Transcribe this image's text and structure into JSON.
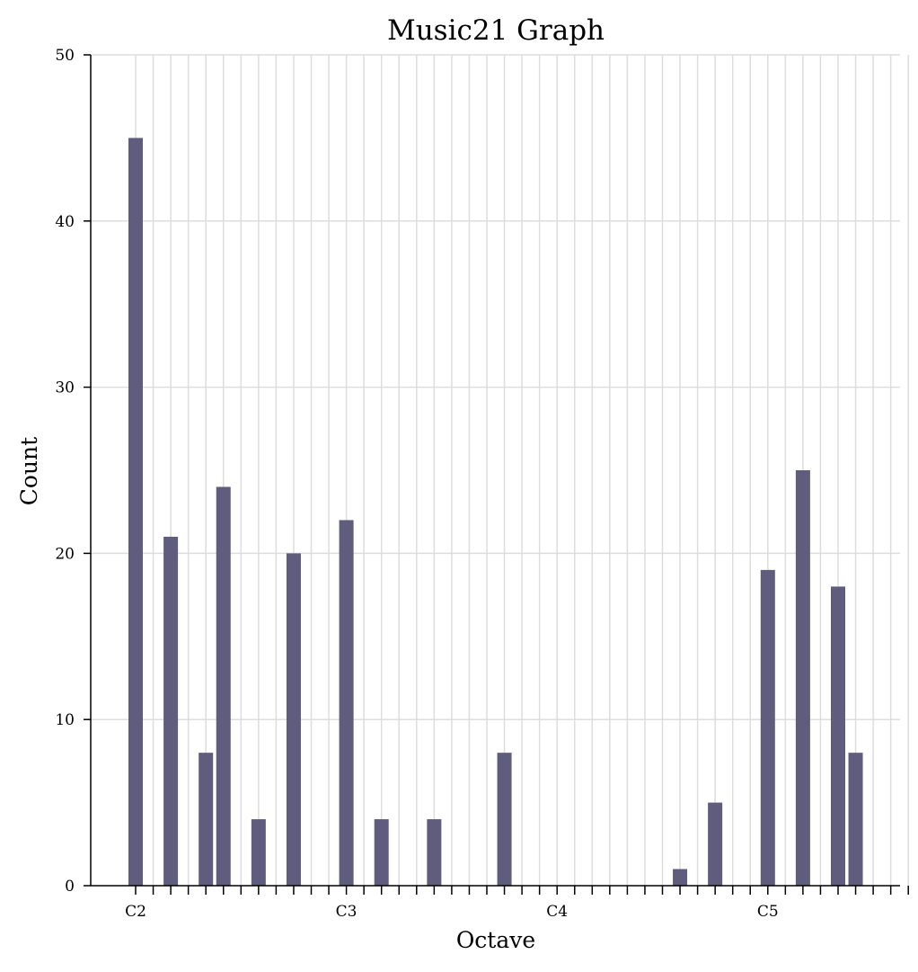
{
  "chart_data": {
    "type": "bar",
    "title": "Music21 Graph",
    "xlabel": "Octave",
    "ylabel": "Count",
    "ylim": [
      0,
      50
    ],
    "yticks": [
      0,
      10,
      20,
      30,
      40,
      50
    ],
    "x_min_tick": 36,
    "x_max_tick": 81,
    "x_label_ticks": [
      {
        "x": 36,
        "label": "C2"
      },
      {
        "x": 48,
        "label": "C3"
      },
      {
        "x": 60,
        "label": "C4"
      },
      {
        "x": 72,
        "label": "C5"
      }
    ],
    "x": [
      36,
      38,
      40,
      41,
      43,
      45,
      48,
      50,
      53,
      57,
      67,
      69,
      72,
      74,
      76,
      77
    ],
    "values": [
      45,
      21,
      8,
      24,
      4,
      20,
      22,
      4,
      4,
      8,
      1,
      5,
      19,
      25,
      18,
      8
    ],
    "bar_color": "#5f5c7e",
    "grid": true,
    "grid_color": "#dddddd"
  }
}
